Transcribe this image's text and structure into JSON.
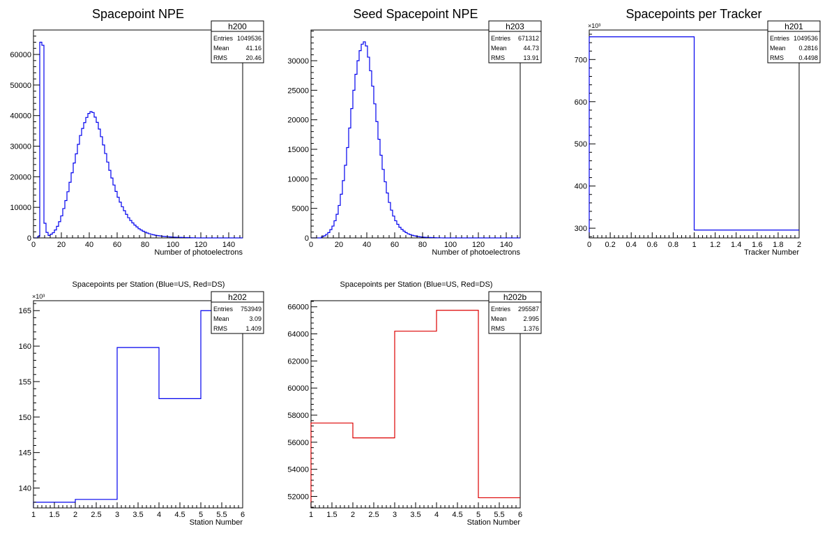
{
  "chart_data": [
    {
      "type": "histogram",
      "title": "Spacepoint NPE",
      "xlabel": "Number of photoelectrons",
      "ylabel": "",
      "xlim": [
        0,
        150
      ],
      "ylim": [
        0,
        68000
      ],
      "xticks": [
        0,
        20,
        40,
        60,
        80,
        100,
        120,
        140
      ],
      "xtick_labels": [
        "0",
        "20",
        "40",
        "60",
        "80",
        "100",
        "120",
        "140"
      ],
      "yticks": [
        0,
        10000,
        20000,
        30000,
        40000,
        50000,
        60000
      ],
      "ytick_labels": [
        "0",
        "10000",
        "20000",
        "30000",
        "40000",
        "50000",
        "60000"
      ],
      "y_exponent_label": "",
      "line_color": "#0000ee",
      "bin_start": 0,
      "bin_width": 1.5,
      "values": [
        0,
        0,
        500,
        64000,
        63000,
        4800,
        1800,
        800,
        1200,
        1700,
        2600,
        3800,
        5300,
        7200,
        9600,
        12200,
        15100,
        18200,
        21300,
        24500,
        27500,
        30600,
        33500,
        35800,
        37700,
        39400,
        40700,
        41300,
        41000,
        39500,
        37800,
        35600,
        33100,
        30400,
        27600,
        24800,
        22100,
        19600,
        17300,
        15200,
        13300,
        11700,
        10200,
        8900,
        7700,
        6600,
        5700,
        4900,
        4200,
        3600,
        3000,
        2600,
        2200,
        1900,
        1600,
        1350,
        1150,
        1000,
        850,
        750,
        650,
        560,
        480,
        420,
        360,
        310,
        270,
        240,
        210,
        190,
        170,
        150,
        130,
        110,
        90,
        60,
        30,
        10,
        0,
        0,
        0,
        0,
        0,
        0,
        0,
        0,
        0,
        0,
        0,
        0,
        0,
        0,
        0,
        0,
        0,
        0,
        0,
        0,
        0,
        0
      ],
      "stats": {
        "name": "h200",
        "entries_label": "Entries",
        "entries": "1049536",
        "mean_label": "Mean",
        "mean": "41.16",
        "rms_label": "RMS",
        "rms": "20.46"
      }
    },
    {
      "type": "histogram",
      "title": "Seed Spacepoint NPE",
      "xlabel": "Number of photoelectrons",
      "ylabel": "",
      "xlim": [
        0,
        150
      ],
      "ylim": [
        0,
        35200
      ],
      "xticks": [
        0,
        20,
        40,
        60,
        80,
        100,
        120,
        140
      ],
      "xtick_labels": [
        "0",
        "20",
        "40",
        "60",
        "80",
        "100",
        "120",
        "140"
      ],
      "yticks": [
        0,
        5000,
        10000,
        15000,
        20000,
        25000,
        30000
      ],
      "ytick_labels": [
        "0",
        "5000",
        "10000",
        "15000",
        "20000",
        "25000",
        "30000"
      ],
      "y_exponent_label": "",
      "line_color": "#0000ee",
      "bin_start": 0,
      "bin_width": 1.5,
      "values": [
        0,
        0,
        0,
        0,
        0,
        200,
        350,
        600,
        900,
        1400,
        2000,
        2900,
        4000,
        5500,
        7400,
        9700,
        12300,
        15300,
        18600,
        21900,
        25000,
        27700,
        30000,
        31700,
        32800,
        33200,
        32500,
        30600,
        28300,
        25700,
        22700,
        19700,
        16700,
        14000,
        11600,
        9500,
        7600,
        6000,
        4700,
        3700,
        2900,
        2300,
        1800,
        1450,
        1150,
        900,
        700,
        560,
        440,
        350,
        280,
        220,
        170,
        130,
        110,
        90,
        70,
        55,
        45,
        35,
        25,
        15,
        10,
        0,
        0,
        0,
        0,
        0,
        0,
        0,
        0,
        0,
        0,
        0,
        0,
        0,
        0,
        0,
        0,
        0,
        0,
        0,
        0,
        0,
        0,
        0,
        0,
        0,
        0,
        0,
        0,
        0,
        0,
        0,
        0,
        0,
        0,
        0,
        0,
        0
      ],
      "stats": {
        "name": "h203",
        "entries_label": "Entries",
        "entries": "671312",
        "mean_label": "Mean",
        "mean": "44.73",
        "rms_label": "RMS",
        "rms": "13.91"
      }
    },
    {
      "type": "histogram",
      "title": "Spacepoints per Tracker",
      "xlabel": "Tracker Number",
      "ylabel": "",
      "xlim": [
        0,
        2
      ],
      "ylim": [
        277,
        770
      ],
      "xticks": [
        0,
        0.2,
        0.4,
        0.6,
        0.8,
        1,
        1.2,
        1.4,
        1.6,
        1.8,
        2
      ],
      "xtick_labels": [
        "0",
        "0.2",
        "0.4",
        "0.6",
        "0.8",
        "1",
        "1.2",
        "1.4",
        "1.6",
        "1.8",
        "2"
      ],
      "yticks": [
        300,
        400,
        500,
        600,
        700
      ],
      "ytick_labels": [
        "300",
        "400",
        "500",
        "600",
        "700"
      ],
      "y_exponent_label": "×10³",
      "line_color": "#0000ee",
      "bin_start": 0,
      "bin_width": 1,
      "values": [
        753.9,
        295.6
      ],
      "stats": {
        "name": "h201",
        "entries_label": "Entries",
        "entries": "1049536",
        "mean_label": "Mean",
        "mean": "0.2816",
        "rms_label": "RMS",
        "rms": "0.4498"
      }
    },
    {
      "type": "histogram",
      "title": "Spacepoints per Station (Blue=US, Red=DS)",
      "xlabel": "Station Number",
      "ylabel": "",
      "xlim": [
        1,
        6
      ],
      "ylim": [
        137.2,
        166.4
      ],
      "xticks": [
        1,
        1.5,
        2,
        2.5,
        3,
        3.5,
        4,
        4.5,
        5,
        5.5,
        6
      ],
      "xtick_labels": [
        "1",
        "1.5",
        "2",
        "2.5",
        "3",
        "3.5",
        "4",
        "4.5",
        "5",
        "5.5",
        "6"
      ],
      "yticks": [
        140,
        145,
        150,
        155,
        160,
        165
      ],
      "ytick_labels": [
        "140",
        "145",
        "150",
        "155",
        "160",
        "165"
      ],
      "y_exponent_label": "×10³",
      "line_color": "#0000ee",
      "bin_start": 1,
      "bin_width": 1,
      "values": [
        138.0,
        138.4,
        159.8,
        152.6,
        165.0
      ],
      "stats": {
        "name": "h202",
        "entries_label": "Entries",
        "entries": "753949",
        "mean_label": "Mean",
        "mean": "3.09",
        "rms_label": "RMS",
        "rms": "1.409"
      }
    },
    {
      "type": "histogram",
      "title": "Spacepoints per Station (Blue=US, Red=DS)",
      "xlabel": "Station Number",
      "ylabel": "",
      "xlim": [
        1,
        6
      ],
      "ylim": [
        51150,
        66450
      ],
      "xticks": [
        1,
        1.5,
        2,
        2.5,
        3,
        3.5,
        4,
        4.5,
        5,
        5.5,
        6
      ],
      "xtick_labels": [
        "1",
        "1.5",
        "2",
        "2.5",
        "3",
        "3.5",
        "4",
        "4.5",
        "5",
        "5.5",
        "6"
      ],
      "yticks": [
        52000,
        54000,
        56000,
        58000,
        60000,
        62000,
        64000,
        66000
      ],
      "ytick_labels": [
        "52000",
        "54000",
        "56000",
        "58000",
        "60000",
        "62000",
        "64000",
        "66000"
      ],
      "y_exponent_label": "",
      "line_color": "#dd0000",
      "bin_start": 1,
      "bin_width": 1,
      "values": [
        57420,
        56320,
        64200,
        65740,
        51900
      ],
      "stats": {
        "name": "h202b",
        "entries_label": "Entries",
        "entries": "295587",
        "mean_label": "Mean",
        "mean": "2.995",
        "rms_label": "RMS",
        "rms": "1.376"
      }
    }
  ]
}
